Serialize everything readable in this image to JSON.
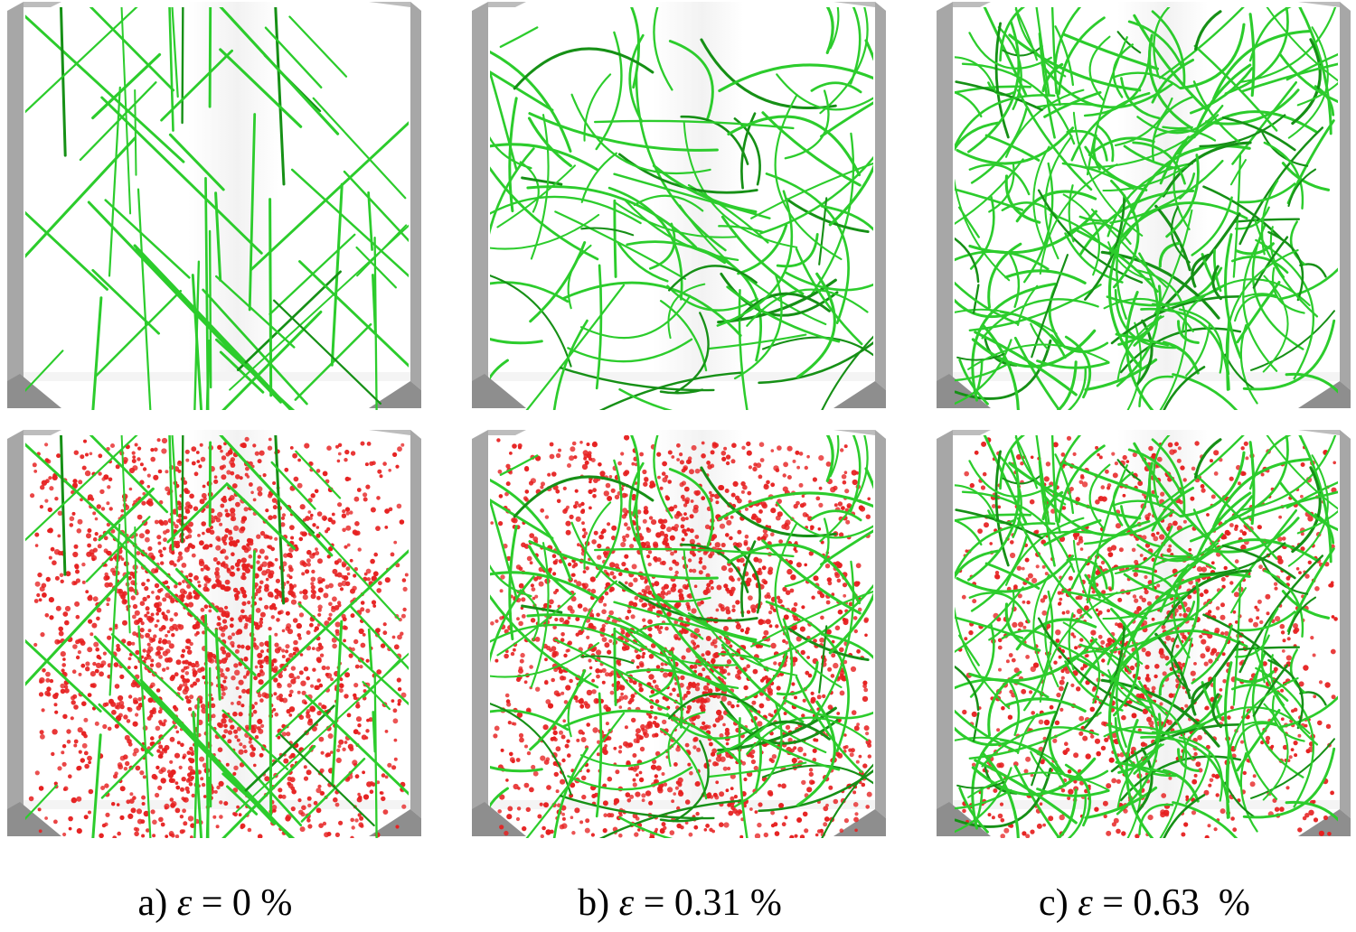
{
  "colors": {
    "dislocation": "#2ccc2c",
    "dislocation_dark": "#169016",
    "precipitate": "#e62020",
    "frame": "#a7a7a7",
    "wall": "#efefef"
  },
  "panels": [
    {
      "id": "a",
      "caption_prefix": "a) ",
      "symbol": "ε",
      "caption_value": " = 0 %",
      "dislocation_style": "straight",
      "dislocation_count": 62,
      "precipitate_density": 1.0
    },
    {
      "id": "b",
      "caption_prefix": "b) ",
      "symbol": "ε",
      "caption_value": " = 0.31 %",
      "dislocation_style": "curved",
      "dislocation_count": 110,
      "precipitate_density": 0.95
    },
    {
      "id": "c",
      "caption_prefix": "c) ",
      "symbol": "ε",
      "caption_value": " = 0.63  %",
      "dislocation_style": "dense",
      "dislocation_count": 240,
      "precipitate_density": 0.55
    }
  ]
}
